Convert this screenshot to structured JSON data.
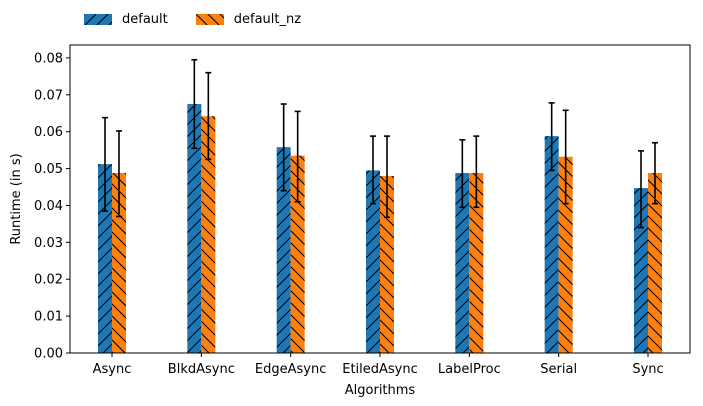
{
  "chart_data": {
    "type": "bar",
    "title": "",
    "xlabel": "Algorithms",
    "ylabel": "Runtime (in s)",
    "ylim": [
      0,
      0.0835
    ],
    "yticks": [
      "0.00",
      "0.01",
      "0.02",
      "0.03",
      "0.04",
      "0.05",
      "0.06",
      "0.07",
      "0.08"
    ],
    "categories": [
      "Async",
      "BlkdAsync",
      "EdgeAsync",
      "EtiledAsync",
      "LabelProc",
      "Serial",
      "Sync"
    ],
    "legend_position": "top-left, outside plot",
    "grid": false,
    "series": [
      {
        "name": "default",
        "color": "#1f77b4",
        "hatch": "diagonal /",
        "values": [
          0.0512,
          0.0675,
          0.0558,
          0.0495,
          0.0488,
          0.0588,
          0.0447
        ],
        "err_low": [
          0.0385,
          0.0555,
          0.044,
          0.0405,
          0.0395,
          0.0495,
          0.034
        ],
        "err_high": [
          0.0638,
          0.0795,
          0.0675,
          0.0588,
          0.0578,
          0.0678,
          0.0548
        ]
      },
      {
        "name": "default_nz",
        "color": "#ff7f0e",
        "hatch": "diagonal \\",
        "values": [
          0.0488,
          0.0642,
          0.0535,
          0.048,
          0.0488,
          0.0532,
          0.0488
        ],
        "err_low": [
          0.037,
          0.0525,
          0.041,
          0.0368,
          0.0395,
          0.0405,
          0.0405
        ],
        "err_high": [
          0.0602,
          0.076,
          0.0655,
          0.0588,
          0.0588,
          0.0658,
          0.057
        ]
      }
    ]
  }
}
